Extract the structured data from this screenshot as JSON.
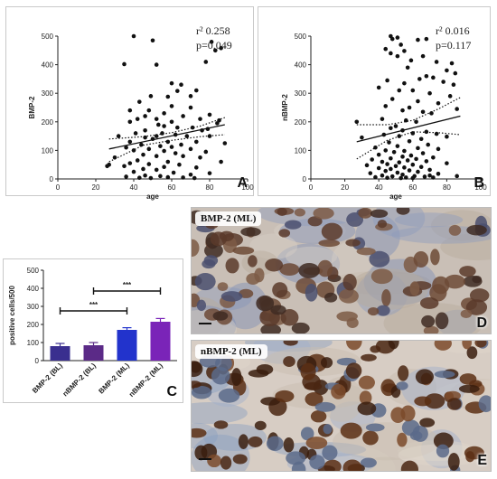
{
  "chart_data": [
    {
      "id": "A",
      "type": "scatter",
      "panel_label": "A",
      "xlabel": "age",
      "ylabel": "BMP-2",
      "xlim": [
        0,
        100
      ],
      "ylim": [
        0,
        500
      ],
      "xticks": [
        "0",
        "20",
        "40",
        "60",
        "80",
        "100"
      ],
      "yticks": [
        "0",
        "100",
        "200",
        "300",
        "400",
        "500"
      ],
      "stats": {
        "r2": "r² 0.258",
        "p": "p=0.049"
      },
      "points": [
        [
          40,
          500
        ],
        [
          50,
          485
        ],
        [
          35,
          402
        ],
        [
          52,
          400
        ],
        [
          81,
          480
        ],
        [
          86,
          458
        ],
        [
          83,
          450
        ],
        [
          78,
          410
        ],
        [
          60,
          335
        ],
        [
          65,
          330
        ],
        [
          63,
          308
        ],
        [
          73,
          310
        ],
        [
          58,
          288
        ],
        [
          49,
          290
        ],
        [
          70,
          290
        ],
        [
          43,
          270
        ],
        [
          60,
          255
        ],
        [
          70,
          250
        ],
        [
          38,
          240
        ],
        [
          48,
          240
        ],
        [
          56,
          230
        ],
        [
          80,
          225
        ],
        [
          46,
          220
        ],
        [
          66,
          220
        ],
        [
          42,
          210
        ],
        [
          52,
          210
        ],
        [
          75,
          210
        ],
        [
          85,
          205
        ],
        [
          38,
          200
        ],
        [
          60,
          200
        ],
        [
          84,
          195
        ],
        [
          53,
          190
        ],
        [
          56,
          185
        ],
        [
          63,
          180
        ],
        [
          71,
          180
        ],
        [
          79,
          175
        ],
        [
          46,
          170
        ],
        [
          76,
          170
        ],
        [
          41,
          160
        ],
        [
          55,
          160
        ],
        [
          62,
          155
        ],
        [
          32,
          150
        ],
        [
          52,
          150
        ],
        [
          68,
          150
        ],
        [
          80,
          150
        ],
        [
          46,
          145
        ],
        [
          50,
          140
        ],
        [
          38,
          130
        ],
        [
          58,
          130
        ],
        [
          73,
          130
        ],
        [
          88,
          125
        ],
        [
          44,
          120
        ],
        [
          65,
          120
        ],
        [
          54,
          115
        ],
        [
          60,
          112
        ],
        [
          36,
          110
        ],
        [
          48,
          105
        ],
        [
          70,
          105
        ],
        [
          40,
          100
        ],
        [
          56,
          98
        ],
        [
          78,
          95
        ],
        [
          62,
          90
        ],
        [
          45,
          85
        ],
        [
          52,
          80
        ],
        [
          66,
          80
        ],
        [
          30,
          75
        ],
        [
          75,
          75
        ],
        [
          42,
          65
        ],
        [
          58,
          60
        ],
        [
          86,
          60
        ],
        [
          38,
          55
        ],
        [
          48,
          52
        ],
        [
          27,
          50
        ],
        [
          64,
          50
        ],
        [
          35,
          45
        ],
        [
          56,
          42
        ],
        [
          73,
          40
        ],
        [
          45,
          35
        ],
        [
          52,
          32
        ],
        [
          40,
          25
        ],
        [
          61,
          22
        ],
        [
          80,
          20
        ],
        [
          70,
          15
        ],
        [
          46,
          12
        ],
        [
          54,
          10
        ],
        [
          36,
          8
        ],
        [
          58,
          6
        ],
        [
          66,
          5
        ],
        [
          43,
          4
        ],
        [
          49,
          3
        ],
        [
          72,
          3
        ],
        [
          26,
          45
        ]
      ],
      "fit": {
        "x": [
          27,
          88
        ],
        "y": [
          105,
          190
        ]
      },
      "ci_upper": {
        "x": [
          27,
          45,
          60,
          75,
          88
        ],
        "y": [
          140,
          148,
          162,
          185,
          215
        ]
      },
      "ci_lower": {
        "x": [
          27,
          45,
          60,
          75,
          88
        ],
        "y": [
          60,
          118,
          135,
          148,
          155
        ]
      }
    },
    {
      "id": "B",
      "type": "scatter",
      "panel_label": "B",
      "xlabel": "age",
      "ylabel": "nBMP-2",
      "xlim": [
        0,
        100
      ],
      "ylim": [
        0,
        500
      ],
      "xticks": [
        "0",
        "20",
        "40",
        "60",
        "80",
        "100"
      ],
      "yticks": [
        "0",
        "100",
        "200",
        "300",
        "400",
        "500"
      ],
      "stats": {
        "r2": "r² 0.016",
        "p": "p=0.117"
      },
      "points": [
        [
          47,
          500
        ],
        [
          51,
          495
        ],
        [
          48,
          490
        ],
        [
          68,
          490
        ],
        [
          63,
          487
        ],
        [
          53,
          470
        ],
        [
          44,
          455
        ],
        [
          55,
          448
        ],
        [
          47,
          440
        ],
        [
          51,
          430
        ],
        [
          66,
          430
        ],
        [
          59,
          415
        ],
        [
          74,
          410
        ],
        [
          83,
          405
        ],
        [
          57,
          390
        ],
        [
          80,
          380
        ],
        [
          85,
          370
        ],
        [
          68,
          360
        ],
        [
          72,
          355
        ],
        [
          64,
          350
        ],
        [
          45,
          345
        ],
        [
          78,
          340
        ],
        [
          55,
          335
        ],
        [
          84,
          330
        ],
        [
          40,
          320
        ],
        [
          52,
          310
        ],
        [
          60,
          310
        ],
        [
          70,
          300
        ],
        [
          82,
          290
        ],
        [
          48,
          280
        ],
        [
          63,
          272
        ],
        [
          75,
          265
        ],
        [
          44,
          255
        ],
        [
          58,
          250
        ],
        [
          86,
          245
        ],
        [
          54,
          240
        ],
        [
          66,
          235
        ],
        [
          71,
          230
        ],
        [
          42,
          210
        ],
        [
          56,
          205
        ],
        [
          62,
          200
        ],
        [
          50,
          185
        ],
        [
          47,
          178
        ],
        [
          54,
          170
        ],
        [
          68,
          165
        ],
        [
          60,
          160
        ],
        [
          74,
          158
        ],
        [
          43,
          155
        ],
        [
          52,
          150
        ],
        [
          80,
          148
        ],
        [
          65,
          140
        ],
        [
          58,
          132
        ],
        [
          46,
          128
        ],
        [
          69,
          120
        ],
        [
          51,
          115
        ],
        [
          38,
          110
        ],
        [
          63,
          108
        ],
        [
          75,
          105
        ],
        [
          44,
          100
        ],
        [
          55,
          98
        ],
        [
          49,
          94
        ],
        [
          66,
          90
        ],
        [
          40,
          85
        ],
        [
          59,
          82
        ],
        [
          54,
          78
        ],
        [
          72,
          75
        ],
        [
          47,
          72
        ],
        [
          62,
          70
        ],
        [
          36,
          68
        ],
        [
          57,
          65
        ],
        [
          68,
          62
        ],
        [
          42,
          60
        ],
        [
          52,
          58
        ],
        [
          80,
          55
        ],
        [
          45,
          52
        ],
        [
          60,
          50
        ],
        [
          33,
          48
        ],
        [
          50,
          45
        ],
        [
          65,
          42
        ],
        [
          55,
          40
        ],
        [
          40,
          38
        ],
        [
          47,
          35
        ],
        [
          70,
          32
        ],
        [
          58,
          30
        ],
        [
          44,
          28
        ],
        [
          63,
          25
        ],
        [
          51,
          22
        ],
        [
          35,
          20
        ],
        [
          75,
          18
        ],
        [
          54,
          15
        ],
        [
          42,
          12
        ],
        [
          61,
          10
        ],
        [
          48,
          9
        ],
        [
          67,
          8
        ],
        [
          38,
          6
        ],
        [
          56,
          5
        ],
        [
          45,
          4
        ],
        [
          53,
          3
        ],
        [
          60,
          3
        ],
        [
          27,
          200
        ],
        [
          30,
          145
        ],
        [
          86,
          10
        ],
        [
          70,
          12
        ],
        [
          72,
          5
        ]
      ],
      "fit": {
        "x": [
          27,
          88
        ],
        "y": [
          130,
          220
        ]
      },
      "ci_upper": {
        "x": [
          27,
          45,
          60,
          75,
          88
        ],
        "y": [
          190,
          190,
          205,
          245,
          285
        ]
      },
      "ci_lower": {
        "x": [
          27,
          45,
          60,
          75,
          88
        ],
        "y": [
          70,
          135,
          165,
          162,
          155
        ]
      }
    },
    {
      "id": "C",
      "type": "bar",
      "panel_label": "C",
      "categories": [
        "BMP-2 (BL)",
        "nBMP-2 (BL)",
        "BMP-2 (ML)",
        "nBMP-2 (ML)"
      ],
      "values": [
        80,
        85,
        170,
        215
      ],
      "errors": [
        15,
        15,
        12,
        18
      ],
      "colors": [
        "#3a2f8f",
        "#5b2a87",
        "#2233cc",
        "#7a24b8"
      ],
      "ylabel": "positive cells/500",
      "ylim": [
        0,
        500
      ],
      "yticks": [
        "0",
        "100",
        "200",
        "300",
        "400",
        "500"
      ],
      "significance": [
        {
          "from": 0,
          "to": 2,
          "label": "***",
          "y": 275
        },
        {
          "from": 1,
          "to": 3,
          "label": "***",
          "y": 385
        }
      ]
    }
  ],
  "micrographs": [
    {
      "label": "BMP-2 (ML)",
      "letter": "D"
    },
    {
      "label": "nBMP-2 (ML)",
      "letter": "E"
    }
  ]
}
